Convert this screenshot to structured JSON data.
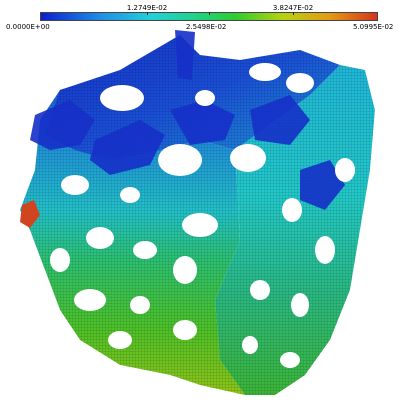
{
  "colorbar": {
    "min_label": "0.0000E+00",
    "label_1": "1.2749E-02",
    "label_2": "2.5498E-02",
    "label_3": "3.8247E-02",
    "max_label": "5.0995E-02",
    "colors": [
      "#0a1fd0",
      "#1f8fe6",
      "#22d0d8",
      "#1fd27a",
      "#2ecc2e",
      "#b7d20f",
      "#e39a14",
      "#d8321b"
    ]
  },
  "scene": {
    "description_icon": "porous-cube-mesh",
    "colors": {
      "low": "#1a2bd6",
      "mid_low": "#1e9fd2",
      "mid": "#21c3c0",
      "mid_high": "#2bbb4a",
      "high": "#8ec11b",
      "peak": "#d0451f",
      "background": "#ffffff",
      "wire": "#000000"
    }
  }
}
